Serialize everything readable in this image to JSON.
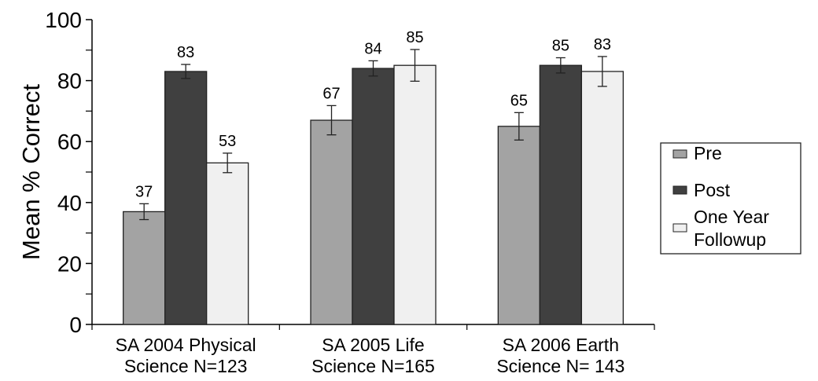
{
  "chart_data": {
    "type": "bar",
    "title": "",
    "xlabel": "",
    "ylabel": "Mean % Correct",
    "ylim": [
      0,
      100
    ],
    "yticks": [
      0,
      20,
      40,
      60,
      80,
      100
    ],
    "yticks_minor": [
      10,
      30,
      50,
      70,
      90
    ],
    "grid": false,
    "legend_position": "right",
    "categories": [
      [
        "SA 2004 Physical",
        "Science  N=123"
      ],
      [
        "SA 2005 Life",
        "Science  N=165"
      ],
      [
        "SA 2006 Earth",
        "Science  N= 143"
      ]
    ],
    "series": [
      {
        "name": "Pre",
        "legend_lines": [
          "Pre"
        ],
        "color": "#a3a3a3",
        "values": [
          37,
          67,
          65
        ],
        "errors": [
          2.6,
          4.8,
          4.5
        ]
      },
      {
        "name": "Post",
        "legend_lines": [
          "Post"
        ],
        "color": "#404040",
        "values": [
          83,
          84,
          85
        ],
        "errors": [
          2.3,
          2.5,
          2.5
        ]
      },
      {
        "name": "One Year Followup",
        "legend_lines": [
          "One Year",
          "Followup"
        ],
        "color": "#f0f0f0",
        "values": [
          53,
          85,
          83
        ],
        "errors": [
          3.2,
          5.2,
          4.9
        ]
      }
    ],
    "data_labels": true
  }
}
